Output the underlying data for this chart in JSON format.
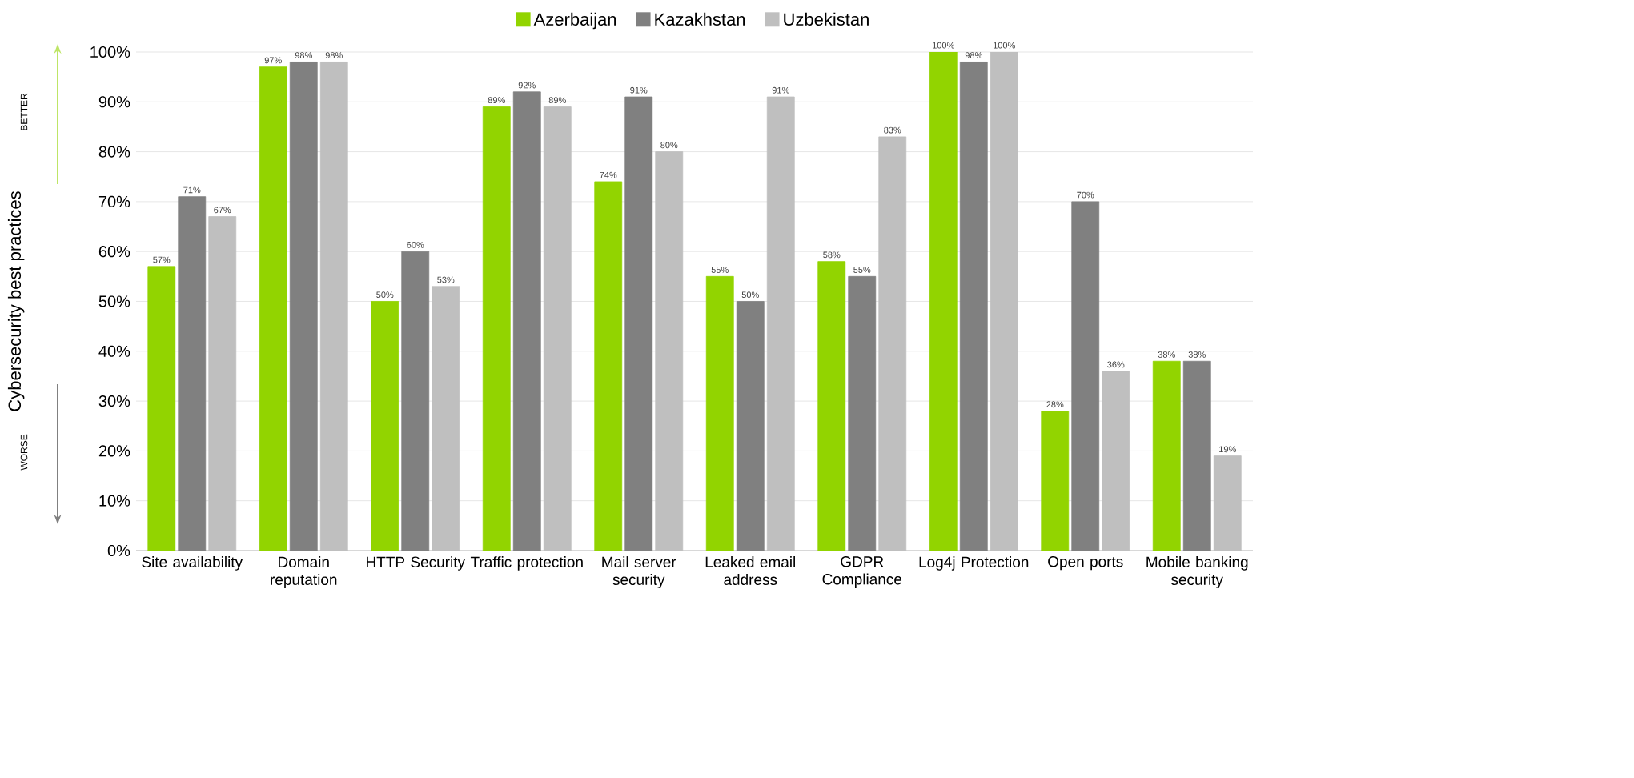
{
  "chart_data": {
    "type": "bar",
    "ylabel": "Cybersecurity best practices",
    "annotations": [
      "BETTER",
      "WORSE"
    ],
    "categories": [
      "Site availability",
      "Domain reputation",
      "HTTP Security",
      "Traffic protection",
      "Mail server security",
      "Leaked email address",
      "GDPR Compliance",
      "Log4j Protection",
      "Open ports",
      "Mobile banking security"
    ],
    "series": [
      {
        "name": "Azerbaijan",
        "color": "#92d400",
        "values": [
          57,
          97,
          50,
          89,
          74,
          55,
          58,
          100,
          28,
          38
        ],
        "value_labels": [
          "57%",
          "97%",
          "50%",
          "89%",
          "74%",
          "55%",
          "58%",
          "100%",
          "28%",
          "38%"
        ]
      },
      {
        "name": "Kazakhstan",
        "color": "#808080",
        "values": [
          71,
          98,
          60,
          92,
          91,
          50,
          55,
          98,
          70,
          38
        ],
        "value_labels": [
          "71%",
          "98%",
          "60%",
          "92%",
          "91%",
          "50%",
          "55%",
          "98%",
          "70%",
          "38%"
        ]
      },
      {
        "name": "Uzbekistan",
        "color": "#bfbfbf",
        "values": [
          67,
          98,
          53,
          89,
          80,
          91,
          83,
          100,
          36,
          19
        ],
        "value_labels": [
          "67%",
          "98%",
          "53%",
          "89%",
          "80%",
          "91%",
          "83%",
          "100%",
          "36%",
          "19%"
        ]
      }
    ],
    "ylim": [
      0,
      100
    ],
    "yticks": [
      {
        "value": 0,
        "label": "0%"
      },
      {
        "value": 10,
        "label": "10%"
      },
      {
        "value": 20,
        "label": "20%"
      },
      {
        "value": 30,
        "label": "30%"
      },
      {
        "value": 40,
        "label": "40%"
      },
      {
        "value": 50,
        "label": "50%"
      },
      {
        "value": 60,
        "label": "60%"
      },
      {
        "value": 70,
        "label": "70%"
      },
      {
        "value": 80,
        "label": "80%"
      },
      {
        "value": 90,
        "label": "90%"
      },
      {
        "value": 100,
        "label": "100%"
      }
    ],
    "grid": "y",
    "legend": "top"
  }
}
